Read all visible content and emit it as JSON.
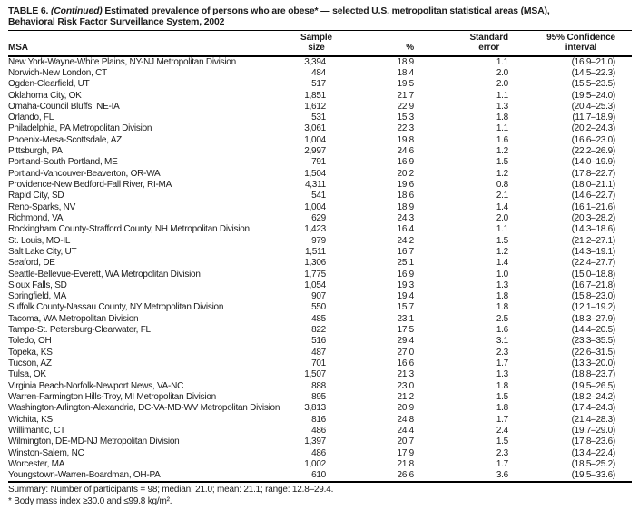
{
  "table": {
    "title": {
      "prefix": "TABLE 6. ",
      "continued": "(Continued)",
      "rest_line1": " Estimated prevalence of persons who are obese* — selected U.S. metropolitan statistical areas (MSA),",
      "line2": "Behavioral Risk Factor Surveillance System, 2002"
    },
    "columns": {
      "msa": "MSA",
      "sample_size": "Sample\nsize",
      "percent": "%",
      "standard_error": "Standard\nerror",
      "confidence_interval": "95% Confidence\ninterval"
    },
    "rows": [
      {
        "msa": "New York-Wayne-White Plains, NY-NJ Metropolitan Division",
        "n": "3,394",
        "pct": "18.9",
        "se": "1.1",
        "ci": "(16.9–21.0)"
      },
      {
        "msa": "Norwich-New London, CT",
        "n": "484",
        "pct": "18.4",
        "se": "2.0",
        "ci": "(14.5–22.3)"
      },
      {
        "msa": "Ogden-Clearfield, UT",
        "n": "517",
        "pct": "19.5",
        "se": "2.0",
        "ci": "(15.5–23.5)"
      },
      {
        "msa": "Oklahoma City, OK",
        "n": "1,851",
        "pct": "21.7",
        "se": "1.1",
        "ci": "(19.5–24.0)"
      },
      {
        "msa": "Omaha-Council Bluffs, NE-IA",
        "n": "1,612",
        "pct": "22.9",
        "se": "1.3",
        "ci": "(20.4–25.3)"
      },
      {
        "msa": "Orlando, FL",
        "n": "531",
        "pct": "15.3",
        "se": "1.8",
        "ci": "(11.7–18.9)"
      },
      {
        "msa": "Philadelphia, PA Metropolitan Division",
        "n": "3,061",
        "pct": "22.3",
        "se": "1.1",
        "ci": "(20.2–24.3)"
      },
      {
        "msa": "Phoenix-Mesa-Scottsdale, AZ",
        "n": "1,004",
        "pct": "19.8",
        "se": "1.6",
        "ci": "(16.6–23.0)"
      },
      {
        "msa": "Pittsburgh, PA",
        "n": "2,997",
        "pct": "24.6",
        "se": "1.2",
        "ci": "(22.2–26.9)"
      },
      {
        "msa": "Portland-South Portland, ME",
        "n": "791",
        "pct": "16.9",
        "se": "1.5",
        "ci": "(14.0–19.9)"
      },
      {
        "msa": "Portland-Vancouver-Beaverton, OR-WA",
        "n": "1,504",
        "pct": "20.2",
        "se": "1.2",
        "ci": "(17.8–22.7)"
      },
      {
        "msa": "Providence-New Bedford-Fall River, RI-MA",
        "n": "4,311",
        "pct": "19.6",
        "se": "0.8",
        "ci": "(18.0–21.1)"
      },
      {
        "msa": "Rapid City, SD",
        "n": "541",
        "pct": "18.6",
        "se": "2.1",
        "ci": "(14.6–22.7)"
      },
      {
        "msa": "Reno-Sparks, NV",
        "n": "1,004",
        "pct": "18.9",
        "se": "1.4",
        "ci": "(16.1–21.6)"
      },
      {
        "msa": "Richmond, VA",
        "n": "629",
        "pct": "24.3",
        "se": "2.0",
        "ci": "(20.3–28.2)"
      },
      {
        "msa": "Rockingham County-Strafford County, NH Metropolitan Division",
        "n": "1,423",
        "pct": "16.4",
        "se": "1.1",
        "ci": "(14.3–18.6)"
      },
      {
        "msa": "St. Louis, MO-IL",
        "n": "979",
        "pct": "24.2",
        "se": "1.5",
        "ci": "(21.2–27.1)"
      },
      {
        "msa": "Salt Lake City, UT",
        "n": "1,511",
        "pct": "16.7",
        "se": "1.2",
        "ci": "(14.3–19.1)"
      },
      {
        "msa": "Seaford, DE",
        "n": "1,306",
        "pct": "25.1",
        "se": "1.4",
        "ci": "(22.4–27.7)"
      },
      {
        "msa": "Seattle-Bellevue-Everett, WA Metropolitan Division",
        "n": "1,775",
        "pct": "16.9",
        "se": "1.0",
        "ci": "(15.0–18.8)"
      },
      {
        "msa": "Sioux Falls, SD",
        "n": "1,054",
        "pct": "19.3",
        "se": "1.3",
        "ci": "(16.7–21.8)"
      },
      {
        "msa": "Springfield, MA",
        "n": "907",
        "pct": "19.4",
        "se": "1.8",
        "ci": "(15.8–23.0)"
      },
      {
        "msa": "Suffolk County-Nassau County, NY Metropolitan Division",
        "n": "550",
        "pct": "15.7",
        "se": "1.8",
        "ci": "(12.1–19.2)"
      },
      {
        "msa": "Tacoma, WA Metropolitan Division",
        "n": "485",
        "pct": "23.1",
        "se": "2.5",
        "ci": "(18.3–27.9)"
      },
      {
        "msa": "Tampa-St. Petersburg-Clearwater, FL",
        "n": "822",
        "pct": "17.5",
        "se": "1.6",
        "ci": "(14.4–20.5)"
      },
      {
        "msa": "Toledo, OH",
        "n": "516",
        "pct": "29.4",
        "se": "3.1",
        "ci": "(23.3–35.5)"
      },
      {
        "msa": "Topeka, KS",
        "n": "487",
        "pct": "27.0",
        "se": "2.3",
        "ci": "(22.6–31.5)"
      },
      {
        "msa": "Tucson, AZ",
        "n": "701",
        "pct": "16.6",
        "se": "1.7",
        "ci": "(13.3–20.0)"
      },
      {
        "msa": "Tulsa, OK",
        "n": "1,507",
        "pct": "21.3",
        "se": "1.3",
        "ci": "(18.8–23.7)"
      },
      {
        "msa": "Virginia Beach-Norfolk-Newport News, VA-NC",
        "n": "888",
        "pct": "23.0",
        "se": "1.8",
        "ci": "(19.5–26.5)"
      },
      {
        "msa": "Warren-Farmington Hills-Troy, MI Metropolitan Division",
        "n": "895",
        "pct": "21.2",
        "se": "1.5",
        "ci": "(18.2–24.2)"
      },
      {
        "msa": "Washington-Arlington-Alexandria, DC-VA-MD-WV Metropolitan Division",
        "n": "3,813",
        "pct": "20.9",
        "se": "1.8",
        "ci": "(17.4–24.3)"
      },
      {
        "msa": "Wichita, KS",
        "n": "816",
        "pct": "24.8",
        "se": "1.7",
        "ci": "(21.4–28.3)"
      },
      {
        "msa": "Willimantic, CT",
        "n": "486",
        "pct": "24.4",
        "se": "2.4",
        "ci": "(19.7–29.0)"
      },
      {
        "msa": "Wilmington, DE-MD-NJ Metropolitan Division",
        "n": "1,397",
        "pct": "20.7",
        "se": "1.5",
        "ci": "(17.8–23.6)"
      },
      {
        "msa": "Winston-Salem, NC",
        "n": "486",
        "pct": "17.9",
        "se": "2.3",
        "ci": "(13.4–22.4)"
      },
      {
        "msa": "Worcester, MA",
        "n": "1,002",
        "pct": "21.8",
        "se": "1.7",
        "ci": "(18.5–25.2)"
      },
      {
        "msa": "Youngstown-Warren-Boardman, OH-PA",
        "n": "610",
        "pct": "26.6",
        "se": "3.6",
        "ci": "(19.5–33.6)"
      }
    ],
    "summary": "Summary: Number of participants = 98; median: 21.0; mean: 21.1; range: 12.8–29.4.",
    "footnote": "* Body mass index ≥30.0 and ≤99.8 kg/m²."
  }
}
